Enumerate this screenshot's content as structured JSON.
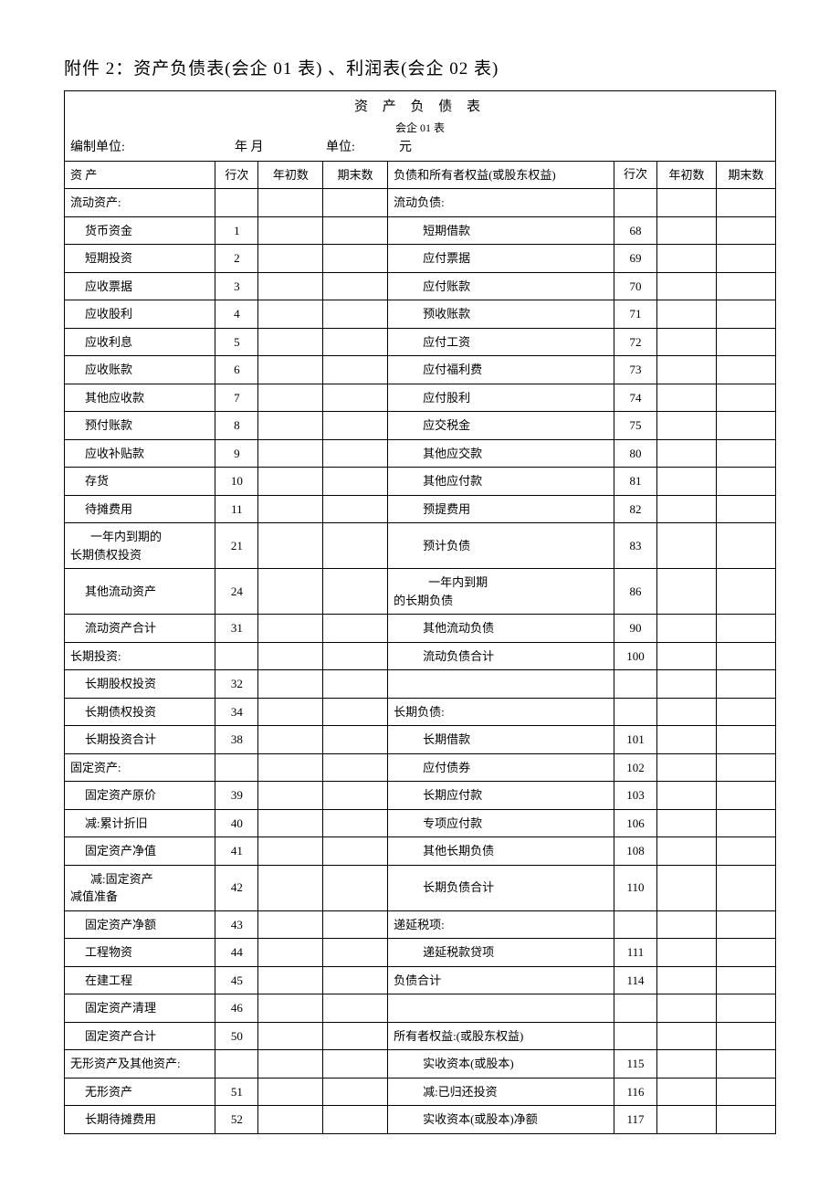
{
  "page_title": "附件 2：资产负债表(会企 01 表) 、利润表(会企 02 表)",
  "table_title": "资 产 负 债 表",
  "table_subtitle": "会企 01 表",
  "meta": {
    "unit_label": "编制单位:",
    "date_label": "年  月",
    "amount_unit_label": "单位:",
    "amount_unit_value": "元"
  },
  "headers": {
    "asset": "资  产",
    "line": "行次",
    "year_begin": "年初数",
    "period_end": "期末数",
    "liability": "负债和所有者权益(或股东权益)",
    "line2": "行次",
    "year_begin2": "年初数",
    "period_end2": "期末数"
  },
  "rows": [
    {
      "a": "流动资产:",
      "ai": 0,
      "al": "",
      "l": "流动负债:",
      "li": 0,
      "ll": ""
    },
    {
      "a": "货币资金",
      "ai": 1,
      "al": "1",
      "l": "短期借款",
      "li": 2,
      "ll": "68"
    },
    {
      "a": "短期投资",
      "ai": 1,
      "al": "2",
      "l": "应付票据",
      "li": 2,
      "ll": "69"
    },
    {
      "a": "应收票据",
      "ai": 1,
      "al": "3",
      "l": "应付账款",
      "li": 2,
      "ll": "70"
    },
    {
      "a": "应收股利",
      "ai": 1,
      "al": "4",
      "l": "预收账款",
      "li": 2,
      "ll": "71"
    },
    {
      "a": "应收利息",
      "ai": 1,
      "al": "5",
      "l": "应付工资",
      "li": 2,
      "ll": "72"
    },
    {
      "a": "应收账款",
      "ai": 1,
      "al": "6",
      "l": "应付福利费",
      "li": 2,
      "ll": "73"
    },
    {
      "a": "其他应收款",
      "ai": 1,
      "al": "7",
      "l": "应付股利",
      "li": 2,
      "ll": "74"
    },
    {
      "a": "预付账款",
      "ai": 1,
      "al": "8",
      "l": "应交税金",
      "li": 2,
      "ll": "75"
    },
    {
      "a": "应收补贴款",
      "ai": 1,
      "al": "9",
      "l": "其他应交款",
      "li": 2,
      "ll": "80"
    },
    {
      "a": "存货",
      "ai": 1,
      "al": "10",
      "l": "其他应付款",
      "li": 2,
      "ll": "81"
    },
    {
      "a": "待摊费用",
      "ai": 1,
      "al": "11",
      "l": "预提费用",
      "li": 2,
      "ll": "82"
    },
    {
      "a": "一年内到期的长期债权投资",
      "ai": 1,
      "al": "21",
      "two": true,
      "a1": "一年内到期的",
      "a2": "长期债权投资",
      "l": "预计负债",
      "li": 2,
      "ll": "83"
    },
    {
      "a": "其他流动资产",
      "ai": 1,
      "al": "24",
      "l": "一年内到期的长期负债",
      "li": 2,
      "ll": "86",
      "ltwo": true,
      "l1": "一年内到期",
      "l2": "的长期负债"
    },
    {
      "a": "流动资产合计",
      "ai": 1,
      "al": "31",
      "l": "其他流动负债",
      "li": 2,
      "ll": "90"
    },
    {
      "a": "长期投资:",
      "ai": 0,
      "al": "",
      "l": "流动负债合计",
      "li": 2,
      "ll": "100"
    },
    {
      "a": "长期股权投资",
      "ai": 1,
      "al": "32",
      "l": "",
      "li": 0,
      "ll": ""
    },
    {
      "a": "长期债权投资",
      "ai": 1,
      "al": "34",
      "l": "长期负债:",
      "li": 0,
      "ll": ""
    },
    {
      "a": "长期投资合计",
      "ai": 1,
      "al": "38",
      "l": "长期借款",
      "li": 2,
      "ll": "101"
    },
    {
      "a": "固定资产:",
      "ai": 0,
      "al": "",
      "l": "应付债券",
      "li": 2,
      "ll": "102"
    },
    {
      "a": "固定资产原价",
      "ai": 1,
      "al": "39",
      "l": "长期应付款",
      "li": 2,
      "ll": "103"
    },
    {
      "a": "减:累计折旧",
      "ai": 1,
      "al": "40",
      "l": "专项应付款",
      "li": 2,
      "ll": "106"
    },
    {
      "a": "固定资产净值",
      "ai": 1,
      "al": "41",
      "l": "其他长期负债",
      "li": 2,
      "ll": "108"
    },
    {
      "a": "减:固定资产减值准备",
      "ai": 1,
      "al": "42",
      "two": true,
      "a1": "减:固定资产",
      "a2": "减值准备",
      "a2i": 0,
      "l": "长期负债合计",
      "li": 2,
      "ll": "110"
    },
    {
      "a": "固定资产净额",
      "ai": 1,
      "al": "43",
      "l": "递延税项:",
      "li": 0,
      "ll": ""
    },
    {
      "a": "工程物资",
      "ai": 1,
      "al": "44",
      "l": "递延税款贷项",
      "li": 2,
      "ll": "111"
    },
    {
      "a": "在建工程",
      "ai": 1,
      "al": "45",
      "l": "负债合计",
      "li": 0,
      "ll": "114"
    },
    {
      "a": "固定资产清理",
      "ai": 1,
      "al": "46",
      "l": "",
      "li": 0,
      "ll": ""
    },
    {
      "a": "固定资产合计",
      "ai": 1,
      "al": "50",
      "l": "所有者权益:(或股东权益)",
      "li": 0,
      "ll": ""
    },
    {
      "a": "无形资产及其他资产:",
      "ai": 0,
      "al": "",
      "l": "实收资本(或股本)",
      "li": 2,
      "ll": "115"
    },
    {
      "a": "无形资产",
      "ai": 1,
      "al": "51",
      "l": "减:已归还投资",
      "li": 2,
      "ll": "116",
      "lx": 1
    },
    {
      "a": "长期待摊费用",
      "ai": 1,
      "al": "52",
      "l": "实收资本(或股本)净额",
      "li": 2,
      "ll": "117"
    }
  ]
}
